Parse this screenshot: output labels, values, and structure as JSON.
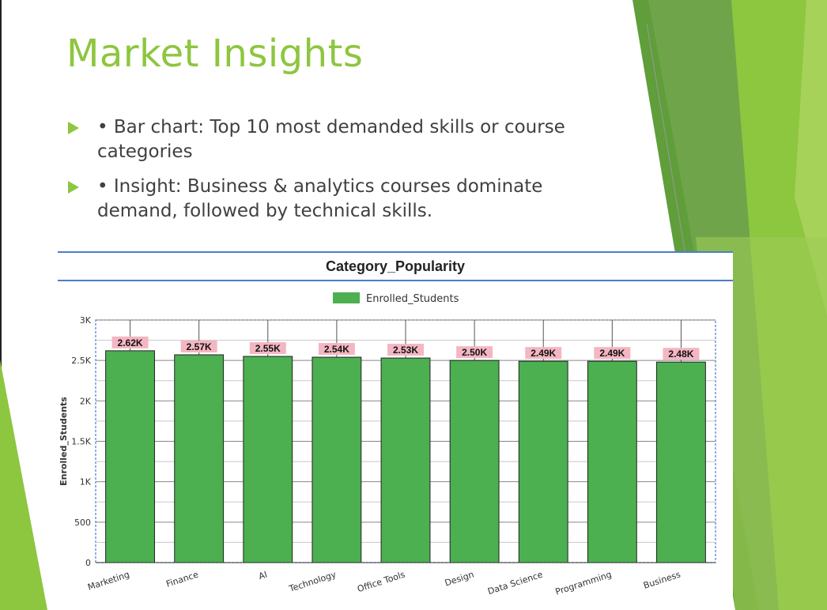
{
  "slide": {
    "title": "Market Insights",
    "bullets": [
      "• Bar chart: Top 10 most demanded skills or course categories",
      "• Insight: Business & analytics courses dominate demand, followed by technical skills."
    ]
  },
  "colors": {
    "accent": "#8dc63f",
    "bar": "#4caf50",
    "data_label_bg": "#f4b6c2",
    "chart_border": "#4a7ec8"
  },
  "chart_data": {
    "type": "bar",
    "title": "Category_Popularity",
    "xlabel": "",
    "ylabel": "Enrolled_Students",
    "legend_position": "top-center",
    "grid": true,
    "ylim": [
      0,
      3000
    ],
    "yticks": [
      0,
      500,
      1000,
      1500,
      2000,
      2500,
      3000
    ],
    "ytick_labels": [
      "0",
      "500",
      "1K",
      "1.5K",
      "2K",
      "2.5K",
      "3K"
    ],
    "categories": [
      "Marketing",
      "Finance",
      "AI",
      "Technology",
      "Office Tools",
      "Design",
      "Data Science",
      "Programming",
      "Business"
    ],
    "series": [
      {
        "name": "Enrolled_Students",
        "values": [
          2620,
          2570,
          2550,
          2540,
          2530,
          2500,
          2490,
          2490,
          2480
        ],
        "data_labels": [
          "2.62K",
          "2.57K",
          "2.55K",
          "2.54K",
          "2.53K",
          "2.50K",
          "2.49K",
          "2.49K",
          "2.48K"
        ]
      }
    ]
  }
}
